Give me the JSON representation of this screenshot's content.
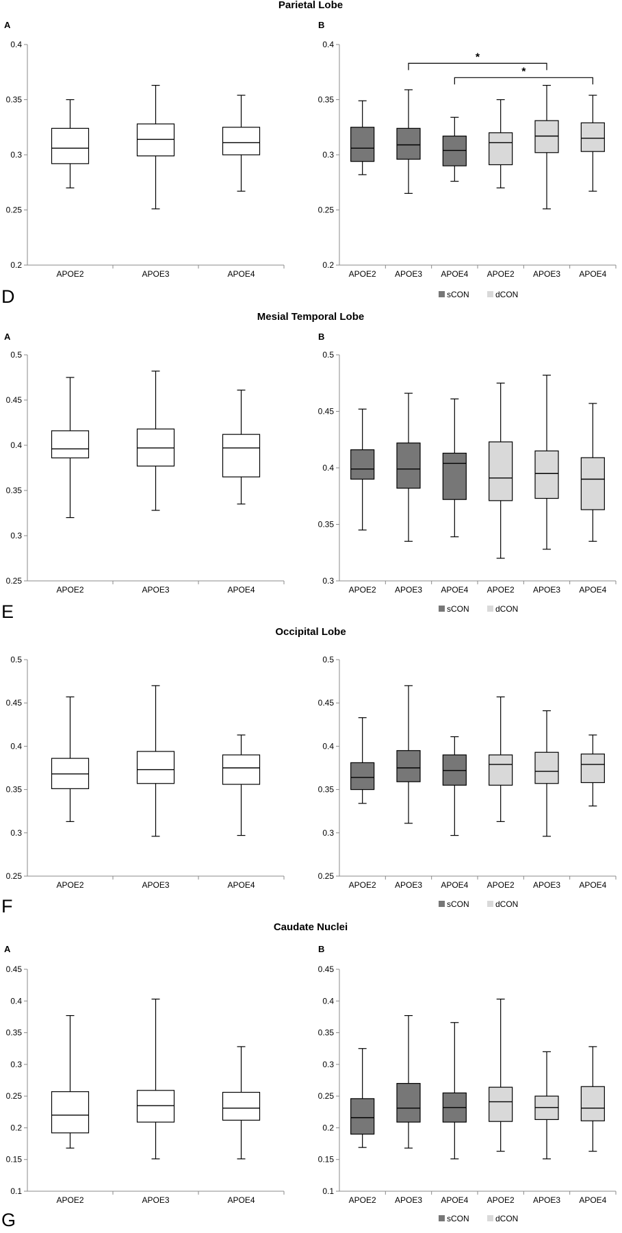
{
  "colors": {
    "scon": "#777777",
    "dcon": "#d9d9d9",
    "plain": "#ffffff",
    "line": "#000000",
    "axis": "#888888"
  },
  "legend": {
    "scon": "sCON",
    "dcon": "dCON"
  },
  "chart_data": [
    {
      "id": "parietal",
      "title": "Parietal Lobe",
      "section_label": "D",
      "panels": [
        {
          "label": "A",
          "type": "boxplot",
          "ylim": [
            0.2,
            0.4
          ],
          "yticks": [
            "0.2",
            "0.25",
            "0.3",
            "0.35",
            "0.4"
          ],
          "categories": [
            "APOE2",
            "APOE3",
            "APOE4"
          ],
          "boxes": [
            {
              "group": "plain",
              "min": 0.27,
              "q1": 0.292,
              "median": 0.306,
              "q3": 0.324,
              "max": 0.35
            },
            {
              "group": "plain",
              "min": 0.251,
              "q1": 0.299,
              "median": 0.314,
              "q3": 0.328,
              "max": 0.363
            },
            {
              "group": "plain",
              "min": 0.267,
              "q1": 0.3,
              "median": 0.311,
              "q3": 0.325,
              "max": 0.354
            }
          ]
        },
        {
          "label": "B",
          "type": "boxplot",
          "ylim": [
            0.2,
            0.4
          ],
          "yticks": [
            "0.2",
            "0.25",
            "0.3",
            "0.35",
            "0.4"
          ],
          "categories": [
            "APOE2",
            "APOE3",
            "APOE4",
            "APOE2",
            "APOE3",
            "APOE4"
          ],
          "boxes": [
            {
              "group": "scon",
              "min": 0.282,
              "q1": 0.294,
              "median": 0.306,
              "q3": 0.325,
              "max": 0.349
            },
            {
              "group": "scon",
              "min": 0.265,
              "q1": 0.296,
              "median": 0.309,
              "q3": 0.324,
              "max": 0.359
            },
            {
              "group": "scon",
              "min": 0.276,
              "q1": 0.29,
              "median": 0.304,
              "q3": 0.317,
              "max": 0.334
            },
            {
              "group": "dcon",
              "min": 0.27,
              "q1": 0.291,
              "median": 0.311,
              "q3": 0.32,
              "max": 0.35
            },
            {
              "group": "dcon",
              "min": 0.251,
              "q1": 0.302,
              "median": 0.317,
              "q3": 0.331,
              "max": 0.363
            },
            {
              "group": "dcon",
              "min": 0.267,
              "q1": 0.303,
              "median": 0.315,
              "q3": 0.329,
              "max": 0.354
            }
          ],
          "significance": [
            {
              "from": 1,
              "to": 4,
              "y": 0.383,
              "label": "*"
            },
            {
              "from": 2,
              "to": 5,
              "y": 0.37,
              "label": "*"
            }
          ],
          "legend": true
        }
      ]
    },
    {
      "id": "mesial",
      "title": "Mesial Temporal Lobe",
      "section_label": "E",
      "panels": [
        {
          "label": "A",
          "type": "boxplot",
          "ylim": [
            0.25,
            0.5
          ],
          "yticks": [
            "0.25",
            "0.3",
            "0.35",
            "0.4",
            "0.45",
            "0.5"
          ],
          "categories": [
            "APOE2",
            "APOE3",
            "APOE4"
          ],
          "boxes": [
            {
              "group": "plain",
              "min": 0.32,
              "q1": 0.386,
              "median": 0.396,
              "q3": 0.416,
              "max": 0.475
            },
            {
              "group": "plain",
              "min": 0.328,
              "q1": 0.377,
              "median": 0.397,
              "q3": 0.418,
              "max": 0.482
            },
            {
              "group": "plain",
              "min": 0.335,
              "q1": 0.365,
              "median": 0.397,
              "q3": 0.412,
              "max": 0.461
            }
          ]
        },
        {
          "label": "B",
          "type": "boxplot",
          "ylim": [
            0.3,
            0.5
          ],
          "yticks": [
            "0.3",
            "0.35",
            "0.4",
            "0.45",
            "0.5"
          ],
          "categories": [
            "APOE2",
            "APOE3",
            "APOE4",
            "APOE2",
            "APOE3",
            "APOE4"
          ],
          "boxes": [
            {
              "group": "scon",
              "min": 0.345,
              "q1": 0.39,
              "median": 0.399,
              "q3": 0.416,
              "max": 0.452
            },
            {
              "group": "scon",
              "min": 0.335,
              "q1": 0.382,
              "median": 0.399,
              "q3": 0.422,
              "max": 0.466
            },
            {
              "group": "scon",
              "min": 0.339,
              "q1": 0.372,
              "median": 0.404,
              "q3": 0.413,
              "max": 0.461
            },
            {
              "group": "dcon",
              "min": 0.32,
              "q1": 0.371,
              "median": 0.391,
              "q3": 0.423,
              "max": 0.475
            },
            {
              "group": "dcon",
              "min": 0.328,
              "q1": 0.373,
              "median": 0.395,
              "q3": 0.415,
              "max": 0.482
            },
            {
              "group": "dcon",
              "min": 0.335,
              "q1": 0.363,
              "median": 0.39,
              "q3": 0.409,
              "max": 0.457
            }
          ],
          "legend": true
        }
      ]
    },
    {
      "id": "occipital",
      "title": "Occipital Lobe",
      "section_label": "F",
      "panels": [
        {
          "label": "",
          "type": "boxplot",
          "ylim": [
            0.25,
            0.5
          ],
          "yticks": [
            "0.25",
            "0.3",
            "0.35",
            "0.4",
            "0.45",
            "0.5"
          ],
          "categories": [
            "APOE2",
            "APOE3",
            "APOE4"
          ],
          "boxes": [
            {
              "group": "plain",
              "min": 0.313,
              "q1": 0.351,
              "median": 0.368,
              "q3": 0.386,
              "max": 0.457
            },
            {
              "group": "plain",
              "min": 0.296,
              "q1": 0.357,
              "median": 0.373,
              "q3": 0.394,
              "max": 0.47
            },
            {
              "group": "plain",
              "min": 0.297,
              "q1": 0.356,
              "median": 0.375,
              "q3": 0.39,
              "max": 0.413
            }
          ]
        },
        {
          "label": "",
          "type": "boxplot",
          "ylim": [
            0.25,
            0.5
          ],
          "yticks": [
            "0.25",
            "0.3",
            "0.35",
            "0.4",
            "0.45",
            "0.5"
          ],
          "categories": [
            "APOE2",
            "APOE3",
            "APOE4",
            "APOE2",
            "APOE3",
            "APOE4"
          ],
          "boxes": [
            {
              "group": "scon",
              "min": 0.334,
              "q1": 0.35,
              "median": 0.364,
              "q3": 0.381,
              "max": 0.433
            },
            {
              "group": "scon",
              "min": 0.311,
              "q1": 0.359,
              "median": 0.375,
              "q3": 0.395,
              "max": 0.47
            },
            {
              "group": "scon",
              "min": 0.297,
              "q1": 0.355,
              "median": 0.372,
              "q3": 0.39,
              "max": 0.411
            },
            {
              "group": "dcon",
              "min": 0.313,
              "q1": 0.355,
              "median": 0.379,
              "q3": 0.39,
              "max": 0.457
            },
            {
              "group": "dcon",
              "min": 0.296,
              "q1": 0.357,
              "median": 0.371,
              "q3": 0.393,
              "max": 0.441
            },
            {
              "group": "dcon",
              "min": 0.331,
              "q1": 0.358,
              "median": 0.379,
              "q3": 0.391,
              "max": 0.413
            }
          ],
          "legend": true
        }
      ]
    },
    {
      "id": "caudate",
      "title": "Caudate Nuclei",
      "section_label": "G",
      "panels": [
        {
          "label": "A",
          "type": "boxplot",
          "ylim": [
            0.1,
            0.45
          ],
          "yticks": [
            "0.1",
            "0.15",
            "0.2",
            "0.25",
            "0.3",
            "0.35",
            "0.4",
            "0.45"
          ],
          "categories": [
            "APOE2",
            "APOE3",
            "APOE4"
          ],
          "boxes": [
            {
              "group": "plain",
              "min": 0.168,
              "q1": 0.192,
              "median": 0.22,
              "q3": 0.257,
              "max": 0.377
            },
            {
              "group": "plain",
              "min": 0.151,
              "q1": 0.209,
              "median": 0.235,
              "q3": 0.259,
              "max": 0.403
            },
            {
              "group": "plain",
              "min": 0.151,
              "q1": 0.212,
              "median": 0.231,
              "q3": 0.256,
              "max": 0.328
            }
          ]
        },
        {
          "label": "B",
          "type": "boxplot",
          "ylim": [
            0.1,
            0.45
          ],
          "yticks": [
            "0.1",
            "0.15",
            "0.2",
            "0.25",
            "0.3",
            "0.35",
            "0.4",
            "0.45"
          ],
          "categories": [
            "APOE2",
            "APOE3",
            "APOE4",
            "APOE2",
            "APOE3",
            "APOE4"
          ],
          "boxes": [
            {
              "group": "scon",
              "min": 0.169,
              "q1": 0.19,
              "median": 0.216,
              "q3": 0.246,
              "max": 0.325
            },
            {
              "group": "scon",
              "min": 0.168,
              "q1": 0.209,
              "median": 0.231,
              "q3": 0.27,
              "max": 0.377
            },
            {
              "group": "scon",
              "min": 0.151,
              "q1": 0.209,
              "median": 0.232,
              "q3": 0.255,
              "max": 0.366
            },
            {
              "group": "dcon",
              "min": 0.163,
              "q1": 0.21,
              "median": 0.241,
              "q3": 0.264,
              "max": 0.403
            },
            {
              "group": "dcon",
              "min": 0.151,
              "q1": 0.213,
              "median": 0.232,
              "q3": 0.25,
              "max": 0.32
            },
            {
              "group": "dcon",
              "min": 0.163,
              "q1": 0.211,
              "median": 0.231,
              "q3": 0.265,
              "max": 0.328
            }
          ],
          "legend": true
        }
      ]
    }
  ]
}
